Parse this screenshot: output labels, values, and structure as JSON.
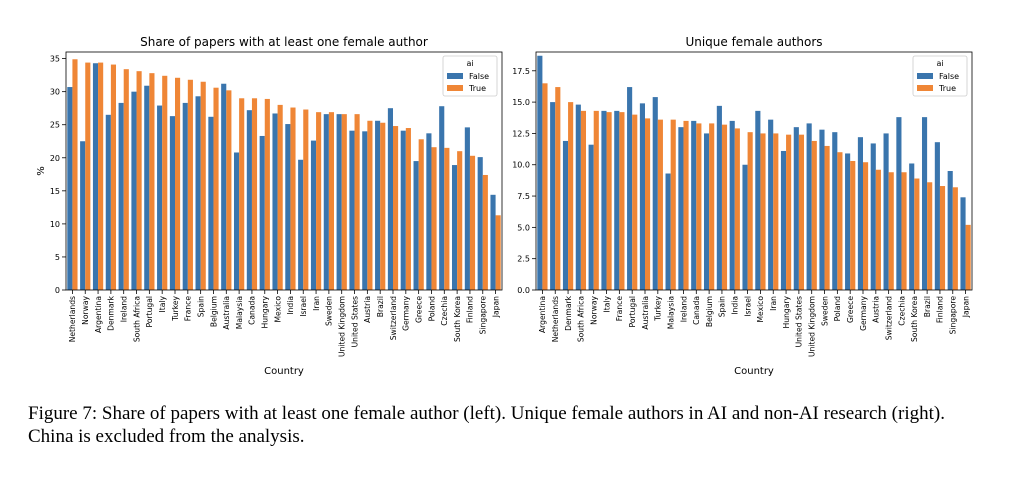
{
  "chart_data": [
    {
      "type": "bar",
      "title": "Share of papers with at least one female author",
      "xlabel": "Country",
      "ylabel": "%",
      "ylim": [
        0,
        36
      ],
      "yticks": [
        0,
        5,
        10,
        15,
        20,
        25,
        30,
        35
      ],
      "legend": {
        "title": "ai",
        "position": "top-right"
      },
      "categories": [
        "Netherlands",
        "Norway",
        "Argentina",
        "Denmark",
        "Ireland",
        "South Africa",
        "Portugal",
        "Italy",
        "Turkey",
        "France",
        "Spain",
        "Belgium",
        "Australia",
        "Malaysia",
        "Canada",
        "Hungary",
        "Mexico",
        "India",
        "Israel",
        "Iran",
        "Sweden",
        "United Kingdom",
        "United States",
        "Austria",
        "Brazil",
        "Switzerland",
        "Germany",
        "Greece",
        "Poland",
        "Czechia",
        "South Korea",
        "Finland",
        "Singapore",
        "Japan"
      ],
      "series": [
        {
          "name": "False",
          "color": "#3a75ad",
          "values": [
            30.7,
            22.5,
            34.3,
            26.5,
            28.3,
            30.0,
            30.9,
            27.9,
            26.3,
            28.3,
            29.3,
            26.2,
            31.2,
            20.8,
            27.2,
            23.3,
            26.7,
            25.1,
            19.7,
            22.6,
            26.6,
            26.6,
            24.1,
            24.0,
            25.6,
            27.5,
            24.1,
            19.5,
            23.7,
            27.8,
            18.9,
            24.6,
            20.1,
            14.4
          ]
        },
        {
          "name": "True",
          "color": "#ef8636",
          "values": [
            34.9,
            34.4,
            34.4,
            34.1,
            33.4,
            33.1,
            32.8,
            32.4,
            32.1,
            31.8,
            31.5,
            30.6,
            30.2,
            29.0,
            29.0,
            28.9,
            28.0,
            27.6,
            27.3,
            26.9,
            26.9,
            26.6,
            26.6,
            25.6,
            25.3,
            24.8,
            24.5,
            22.8,
            21.6,
            21.5,
            21.0,
            20.3,
            17.4,
            11.3
          ]
        }
      ]
    },
    {
      "type": "bar",
      "title": "Unique female authors",
      "xlabel": "Country",
      "ylabel": "",
      "ylim": [
        0,
        19
      ],
      "yticks": [
        0.0,
        2.5,
        5.0,
        7.5,
        10.0,
        12.5,
        15.0,
        17.5
      ],
      "legend": {
        "title": "ai",
        "position": "top-right"
      },
      "categories": [
        "Argentina",
        "Netherlands",
        "Denmark",
        "South Africa",
        "Norway",
        "Italy",
        "France",
        "Portugal",
        "Australia",
        "Turkey",
        "Malaysia",
        "Ireland",
        "Canada",
        "Belgium",
        "Spain",
        "India",
        "Israel",
        "Mexico",
        "Iran",
        "Hungary",
        "United States",
        "United Kingdom",
        "Sweden",
        "Poland",
        "Greece",
        "Germany",
        "Austria",
        "Switzerland",
        "Czechia",
        "South Korea",
        "Brazil",
        "Finland",
        "Singapore",
        "Japan"
      ],
      "series": [
        {
          "name": "False",
          "color": "#3a75ad",
          "values": [
            18.7,
            15.0,
            11.9,
            14.8,
            11.6,
            14.3,
            14.3,
            16.2,
            14.9,
            15.4,
            9.3,
            13.0,
            13.5,
            12.5,
            14.7,
            13.5,
            10.0,
            14.3,
            13.6,
            11.1,
            13.0,
            13.3,
            12.8,
            12.6,
            10.9,
            12.2,
            11.7,
            12.5,
            13.8,
            10.1,
            13.8,
            11.8,
            9.5,
            7.4
          ]
        },
        {
          "name": "True",
          "color": "#ef8636",
          "values": [
            16.5,
            16.2,
            15.0,
            14.3,
            14.3,
            14.2,
            14.2,
            14.0,
            13.7,
            13.6,
            13.6,
            13.5,
            13.3,
            13.3,
            13.2,
            12.9,
            12.6,
            12.5,
            12.5,
            12.4,
            12.4,
            11.9,
            11.5,
            11.0,
            10.3,
            10.2,
            9.6,
            9.4,
            9.4,
            8.9,
            8.6,
            8.3,
            8.2,
            5.2
          ]
        }
      ]
    }
  ],
  "caption": "Figure 7: Share of papers with at least one female author (left). Unique female authors in AI and non-AI research (right). China is excluded from the analysis."
}
